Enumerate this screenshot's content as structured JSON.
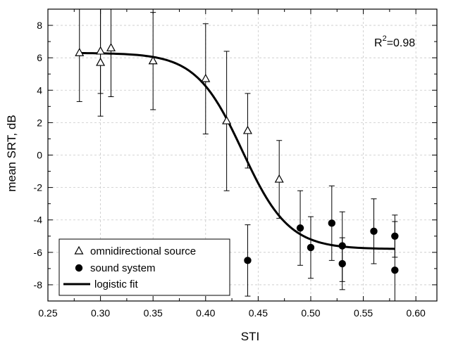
{
  "chart_data": {
    "type": "scatter",
    "xlabel": "STI",
    "ylabel": "mean SRT, dB",
    "xlim": [
      0.25,
      0.62
    ],
    "ylim": [
      -9,
      9
    ],
    "xticks": [
      "0.25",
      "0.30",
      "0.35",
      "0.40",
      "0.45",
      "0.50",
      "0.55",
      "0.60"
    ],
    "yticks": [
      "-8",
      "-6",
      "-4",
      "-2",
      "0",
      "2",
      "4",
      "6",
      "8"
    ],
    "grid": true,
    "legend_position": "bottom-left",
    "annotation": {
      "base": "R",
      "sup": "2",
      "rest": "=0.98"
    },
    "series": [
      {
        "name": "omnidirectional source",
        "marker": "open-triangle",
        "points": [
          {
            "x": 0.28,
            "y": 6.3,
            "lo": 3.3,
            "hi": 9.3
          },
          {
            "x": 0.3,
            "y": 6.4,
            "lo": 3.8,
            "hi": 9.0
          },
          {
            "x": 0.3,
            "y": 5.7,
            "lo": 2.4,
            "hi": 9.0
          },
          {
            "x": 0.31,
            "y": 6.6,
            "lo": 3.6,
            "hi": 9.6
          },
          {
            "x": 0.35,
            "y": 5.8,
            "lo": 2.8,
            "hi": 8.8
          },
          {
            "x": 0.4,
            "y": 4.7,
            "lo": 1.3,
            "hi": 8.1
          },
          {
            "x": 0.42,
            "y": 2.1,
            "lo": -2.2,
            "hi": 6.4
          },
          {
            "x": 0.44,
            "y": 1.5,
            "lo": -0.8,
            "hi": 3.8
          },
          {
            "x": 0.47,
            "y": -1.5,
            "lo": -3.9,
            "hi": 0.9
          }
        ]
      },
      {
        "name": "sound system",
        "marker": "filled-circle",
        "points": [
          {
            "x": 0.44,
            "y": -6.5,
            "lo": -8.7,
            "hi": -4.3
          },
          {
            "x": 0.49,
            "y": -4.5,
            "lo": -6.8,
            "hi": -2.2
          },
          {
            "x": 0.5,
            "y": -5.7,
            "lo": -7.6,
            "hi": -3.8
          },
          {
            "x": 0.52,
            "y": -4.2,
            "lo": -6.5,
            "hi": -1.9
          },
          {
            "x": 0.53,
            "y": -5.6,
            "lo": -7.8,
            "hi": -3.5
          },
          {
            "x": 0.53,
            "y": -6.7,
            "lo": -8.3,
            "hi": -5.1
          },
          {
            "x": 0.56,
            "y": -4.7,
            "lo": -6.7,
            "hi": -2.7
          },
          {
            "x": 0.58,
            "y": -5.0,
            "lo": -6.3,
            "hi": -3.7
          },
          {
            "x": 0.58,
            "y": -7.1,
            "lo": -9.5,
            "hi": -4.1
          }
        ]
      },
      {
        "name": "logistic fit",
        "marker": "line",
        "fit": {
          "top": 6.3,
          "bottom": -5.8,
          "x0": 0.435,
          "slope": 0.022,
          "from": 0.28,
          "to": 0.58
        }
      }
    ]
  }
}
